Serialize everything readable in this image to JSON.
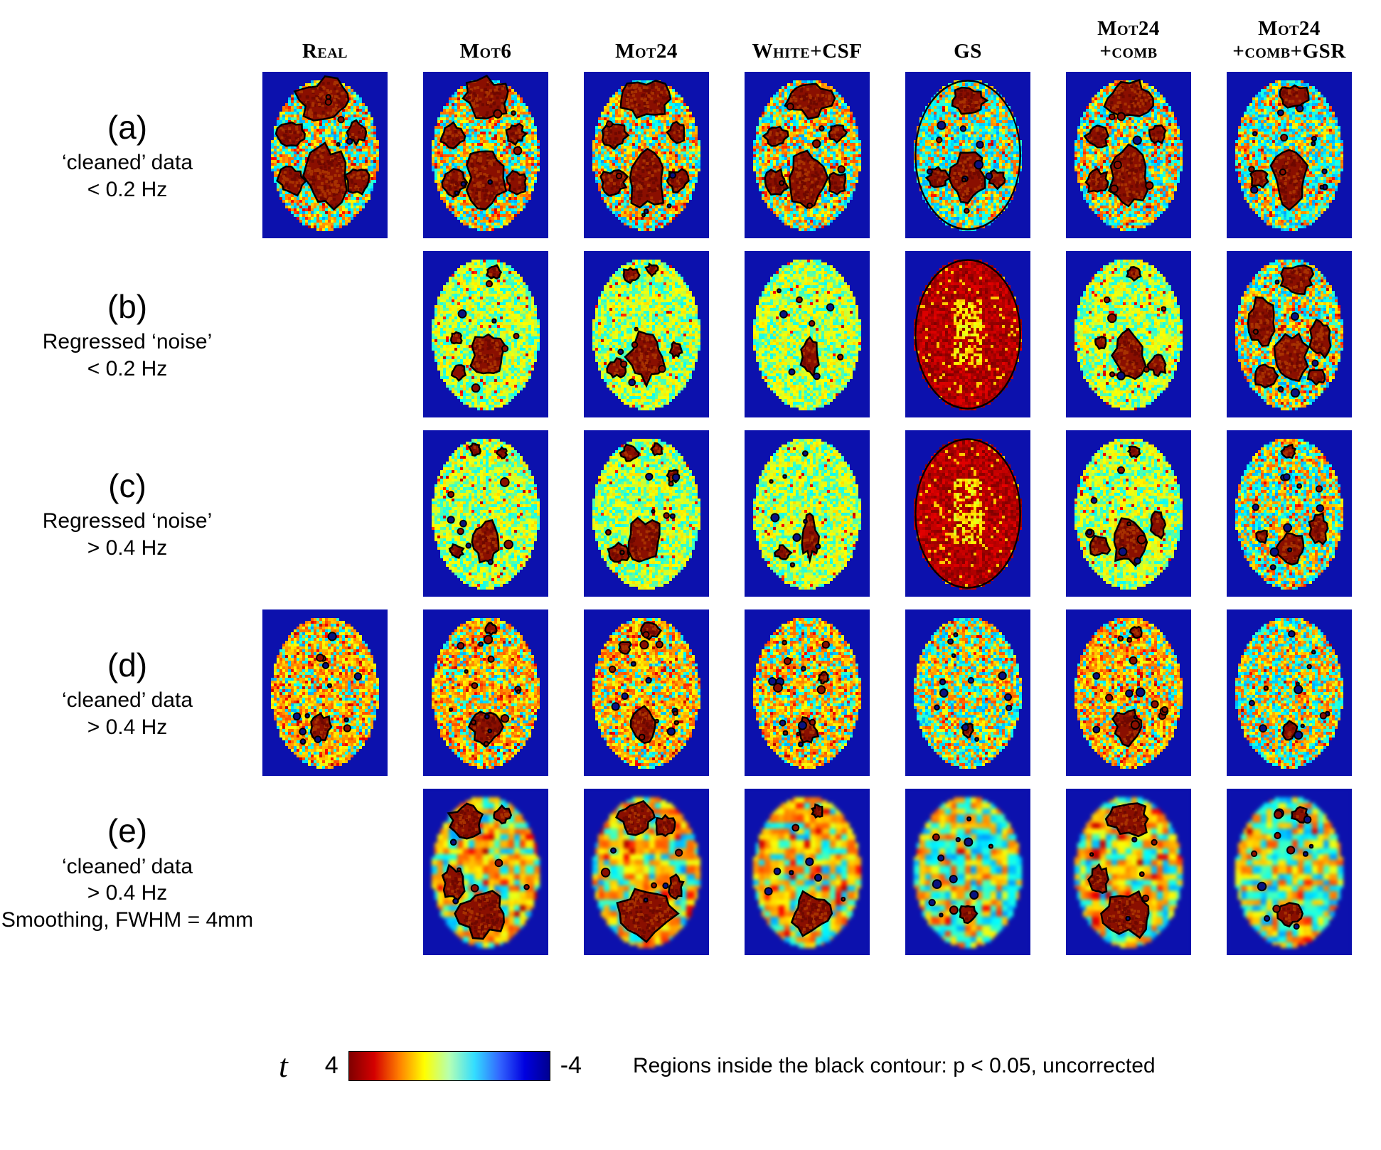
{
  "columns": [
    {
      "lines": [
        "Real"
      ]
    },
    {
      "lines": [
        "Mot6"
      ]
    },
    {
      "lines": [
        "Mot24"
      ]
    },
    {
      "lines": [
        "White+CSF"
      ]
    },
    {
      "lines": [
        "GS"
      ]
    },
    {
      "lines": [
        "Mot24",
        "+comb"
      ]
    },
    {
      "lines": [
        "Mot24",
        "+comb+GSR"
      ]
    }
  ],
  "rows": [
    {
      "tag": "(a)",
      "label_lines": [
        "‘cleaned’ data",
        "< 0.2 Hz"
      ],
      "cells": [
        {
          "seed": 101,
          "warm": 0.6,
          "hot": 0.15,
          "blobs": [
            [
              0,
              -0.72,
              0.5,
              0.26
            ],
            [
              -0.62,
              -0.28,
              0.24,
              0.16
            ],
            [
              0.58,
              -0.3,
              0.18,
              0.13
            ],
            [
              0,
              0.28,
              0.36,
              0.4
            ],
            [
              -0.62,
              0.34,
              0.24,
              0.18
            ],
            [
              0.6,
              0.34,
              0.2,
              0.16
            ]
          ],
          "dots": 5
        },
        {
          "seed": 102,
          "warm": 0.6,
          "hot": 0.13,
          "blobs": [
            [
              0.02,
              -0.75,
              0.44,
              0.24
            ],
            [
              -0.6,
              -0.25,
              0.22,
              0.15
            ],
            [
              0.55,
              -0.28,
              0.17,
              0.12
            ],
            [
              0,
              0.3,
              0.34,
              0.38
            ],
            [
              -0.6,
              0.36,
              0.22,
              0.16
            ],
            [
              0.58,
              0.36,
              0.18,
              0.14
            ]
          ],
          "dots": 6
        },
        {
          "seed": 103,
          "warm": 0.6,
          "hot": 0.13,
          "blobs": [
            [
              0,
              -0.74,
              0.42,
              0.24
            ],
            [
              -0.6,
              -0.26,
              0.22,
              0.15
            ],
            [
              0.56,
              -0.3,
              0.16,
              0.12
            ],
            [
              0.02,
              0.3,
              0.34,
              0.38
            ],
            [
              -0.6,
              0.36,
              0.22,
              0.16
            ],
            [
              0.58,
              0.34,
              0.18,
              0.14
            ]
          ],
          "dots": 6
        },
        {
          "seed": 104,
          "warm": 0.6,
          "hot": 0.12,
          "blobs": [
            [
              0.02,
              -0.75,
              0.4,
              0.22
            ],
            [
              -0.58,
              -0.25,
              0.2,
              0.14
            ],
            [
              0.55,
              -0.3,
              0.15,
              0.11
            ],
            [
              0,
              0.3,
              0.32,
              0.36
            ],
            [
              -0.58,
              0.36,
              0.2,
              0.15
            ],
            [
              0.56,
              0.36,
              0.17,
              0.13
            ]
          ],
          "dots": 6
        },
        {
          "seed": 105,
          "warm": 0.42,
          "hot": 0.05,
          "outline": 1,
          "blobs": [
            [
              0.02,
              -0.72,
              0.3,
              0.16
            ],
            [
              0,
              0.3,
              0.3,
              0.3
            ],
            [
              -0.55,
              0.3,
              0.18,
              0.13
            ],
            [
              0.55,
              0.32,
              0.14,
              0.11
            ]
          ],
          "dots": 10
        },
        {
          "seed": 106,
          "warm": 0.58,
          "hot": 0.12,
          "blobs": [
            [
              0.02,
              -0.75,
              0.42,
              0.23
            ],
            [
              -0.58,
              -0.25,
              0.2,
              0.14
            ],
            [
              0.55,
              -0.28,
              0.15,
              0.11
            ],
            [
              0,
              0.3,
              0.32,
              0.36
            ],
            [
              -0.58,
              0.36,
              0.2,
              0.15
            ]
          ],
          "dots": 6
        },
        {
          "seed": 107,
          "warm": 0.46,
          "hot": 0.08,
          "blobs": [
            [
              0.1,
              -0.78,
              0.28,
              0.14
            ],
            [
              0,
              0.3,
              0.3,
              0.34
            ],
            [
              -0.56,
              0.3,
              0.16,
              0.12
            ]
          ],
          "dots": 12
        }
      ]
    },
    {
      "tag": "(b)",
      "label_lines": [
        "Regressed ‘noise’",
        "< 0.2 Hz"
      ],
      "cells": [
        null,
        {
          "seed": 201,
          "pale": 1,
          "warm": 0.6,
          "hot": 0.05,
          "blobs": [
            [
              0.05,
              0.28,
              0.3,
              0.3
            ],
            [
              0.15,
              -0.82,
              0.12,
              0.08
            ],
            [
              -0.55,
              0.05,
              0.1,
              0.08
            ],
            [
              -0.5,
              0.5,
              0.12,
              0.09
            ]
          ],
          "dots": 6
        },
        {
          "seed": 202,
          "pale": 1,
          "warm": 0.6,
          "hot": 0.05,
          "blobs": [
            [
              0,
              0.3,
              0.32,
              0.32
            ],
            [
              -0.3,
              -0.78,
              0.14,
              0.09
            ],
            [
              0.1,
              -0.85,
              0.1,
              0.07
            ],
            [
              -0.55,
              0.45,
              0.16,
              0.11
            ],
            [
              0.55,
              0.2,
              0.1,
              0.09
            ]
          ],
          "dots": 6
        },
        {
          "seed": 203,
          "pale": 1,
          "warm": 0.62,
          "hot": 0.04,
          "blobs": [
            [
              0.05,
              0.3,
              0.16,
              0.24
            ]
          ],
          "dots": 8
        },
        {
          "seed": 204,
          "base": "red"
        },
        {
          "seed": 205,
          "pale": 1,
          "warm": 0.62,
          "hot": 0.06,
          "blobs": [
            [
              0,
              0.28,
              0.3,
              0.32
            ],
            [
              0.55,
              0.4,
              0.16,
              0.13
            ],
            [
              0.1,
              -0.8,
              0.12,
              0.08
            ],
            [
              -0.5,
              0.1,
              0.1,
              0.08
            ]
          ],
          "dots": 6
        },
        {
          "seed": 206,
          "warm": 0.55,
          "hot": 0.1,
          "blobs": [
            [
              0.15,
              -0.72,
              0.3,
              0.18
            ],
            [
              -0.5,
              -0.15,
              0.26,
              0.3
            ],
            [
              0.05,
              0.3,
              0.3,
              0.3
            ],
            [
              0.58,
              0.05,
              0.18,
              0.24
            ],
            [
              -0.45,
              0.55,
              0.2,
              0.13
            ],
            [
              0.5,
              0.55,
              0.15,
              0.1
            ]
          ],
          "dots": 6
        }
      ]
    },
    {
      "tag": "(c)",
      "label_lines": [
        "Regressed ‘noise’",
        "> 0.4 Hz"
      ],
      "cells": [
        null,
        {
          "seed": 301,
          "pale": 1,
          "warm": 0.6,
          "hot": 0.05,
          "blobs": [
            [
              0,
              0.38,
              0.26,
              0.26
            ],
            [
              -0.2,
              -0.85,
              0.1,
              0.07
            ],
            [
              0.3,
              -0.8,
              0.09,
              0.06
            ],
            [
              -0.55,
              0.5,
              0.12,
              0.08
            ]
          ],
          "dots": 8
        },
        {
          "seed": 302,
          "pale": 1,
          "warm": 0.6,
          "hot": 0.05,
          "blobs": [
            [
              -0.02,
              0.38,
              0.3,
              0.28
            ],
            [
              -0.3,
              -0.8,
              0.16,
              0.1
            ],
            [
              0.2,
              -0.85,
              0.1,
              0.07
            ],
            [
              -0.52,
              0.52,
              0.18,
              0.11
            ],
            [
              0.5,
              -0.5,
              0.1,
              0.08
            ]
          ],
          "dots": 8
        },
        {
          "seed": 303,
          "pale": 1,
          "warm": 0.62,
          "hot": 0.04,
          "blobs": [
            [
              0.05,
              0.3,
              0.14,
              0.26
            ],
            [
              -0.45,
              0.52,
              0.13,
              0.09
            ]
          ],
          "dots": 8
        },
        {
          "seed": 304,
          "base": "red"
        },
        {
          "seed": 305,
          "pale": 1,
          "warm": 0.62,
          "hot": 0.06,
          "blobs": [
            [
              0,
              0.38,
              0.28,
              0.28
            ],
            [
              -0.55,
              0.42,
              0.18,
              0.13
            ],
            [
              0.55,
              0.15,
              0.13,
              0.17
            ],
            [
              0.1,
              -0.82,
              0.1,
              0.07
            ]
          ],
          "dots": 8
        },
        {
          "seed": 306,
          "warm": 0.55,
          "hot": 0.07,
          "blobs": [
            [
              0.05,
              0.45,
              0.24,
              0.2
            ],
            [
              0.55,
              0.2,
              0.16,
              0.18
            ],
            [
              0,
              -0.82,
              0.12,
              0.08
            ],
            [
              -0.5,
              0.3,
              0.1,
              0.08
            ]
          ],
          "dots": 10
        }
      ]
    },
    {
      "tag": "(d)",
      "label_lines": [
        "‘cleaned’ data",
        "> 0.4 Hz"
      ],
      "cells": [
        {
          "seed": 401,
          "warm": 0.78,
          "hot": 0.1,
          "blobs": [
            [
              -0.08,
              0.45,
              0.18,
              0.16
            ]
          ],
          "dots": 14
        },
        {
          "seed": 402,
          "warm": 0.78,
          "hot": 0.1,
          "blobs": [
            [
              0,
              0.45,
              0.26,
              0.22
            ],
            [
              0.1,
              -0.85,
              0.1,
              0.07
            ]
          ],
          "dots": 14
        },
        {
          "seed": 403,
          "warm": 0.78,
          "hot": 0.1,
          "blobs": [
            [
              -0.04,
              0.45,
              0.26,
              0.22
            ],
            [
              0.05,
              -0.82,
              0.18,
              0.1
            ],
            [
              -0.4,
              -0.6,
              0.1,
              0.08
            ]
          ],
          "dots": 14
        },
        {
          "seed": 404,
          "warm": 0.75,
          "hot": 0.08,
          "blobs": [
            [
              0,
              0.5,
              0.18,
              0.16
            ],
            [
              0.3,
              -0.2,
              0.08,
              0.07
            ]
          ],
          "dots": 14
        },
        {
          "seed": 405,
          "warm": 0.55,
          "hot": 0.05,
          "blobs": [
            [
              0,
              0.5,
              0.1,
              0.09
            ]
          ],
          "dots": 12
        },
        {
          "seed": 406,
          "warm": 0.78,
          "hot": 0.1,
          "blobs": [
            [
              0,
              0.45,
              0.26,
              0.22
            ],
            [
              0.15,
              -0.8,
              0.1,
              0.07
            ]
          ],
          "dots": 14
        },
        {
          "seed": 407,
          "warm": 0.55,
          "hot": 0.06,
          "blobs": [
            [
              0,
              0.5,
              0.13,
              0.11
            ]
          ],
          "dots": 12
        }
      ]
    },
    {
      "tag": "(e)",
      "label_lines": [
        "‘cleaned’ data",
        "> 0.4 Hz",
        "Smoothing, FWHM = 4mm"
      ],
      "cells": [
        null,
        {
          "seed": 501,
          "smooth": 1,
          "warm": 0.72,
          "hot": 0.1,
          "blobs": [
            [
              -0.35,
              -0.68,
              0.3,
              0.2
            ],
            [
              0.3,
              -0.75,
              0.15,
              0.1
            ],
            [
              -0.05,
              0.55,
              0.42,
              0.3
            ],
            [
              -0.6,
              0.15,
              0.18,
              0.22
            ]
          ],
          "dots": 6
        },
        {
          "seed": 502,
          "smooth": 1,
          "warm": 0.72,
          "hot": 0.1,
          "blobs": [
            [
              -0.2,
              -0.72,
              0.32,
              0.2
            ],
            [
              0.35,
              -0.6,
              0.18,
              0.13
            ],
            [
              0,
              0.55,
              0.48,
              0.3
            ],
            [
              0.55,
              0.2,
              0.12,
              0.14
            ]
          ],
          "dots": 6
        },
        {
          "seed": 503,
          "smooth": 1,
          "warm": 0.7,
          "hot": 0.07,
          "blobs": [
            [
              0.08,
              0.55,
              0.34,
              0.26
            ],
            [
              0.2,
              -0.8,
              0.1,
              0.08
            ]
          ],
          "dots": 8
        },
        {
          "seed": 504,
          "smooth": 1,
          "warm": 0.5,
          "hot": 0.04,
          "blobs": [
            [
              0,
              0.55,
              0.14,
              0.11
            ]
          ],
          "dots": 12
        },
        {
          "seed": 505,
          "smooth": 1,
          "warm": 0.72,
          "hot": 0.1,
          "blobs": [
            [
              0,
              -0.7,
              0.38,
              0.2
            ],
            [
              0,
              0.55,
              0.44,
              0.28
            ],
            [
              -0.55,
              0.1,
              0.16,
              0.18
            ]
          ],
          "dots": 6
        },
        {
          "seed": 506,
          "smooth": 1,
          "warm": 0.52,
          "hot": 0.05,
          "blobs": [
            [
              0.2,
              -0.75,
              0.14,
              0.09
            ],
            [
              0,
              0.55,
              0.2,
              0.14
            ]
          ],
          "dots": 12
        }
      ]
    }
  ],
  "colorbar": {
    "symbol": "t",
    "max_label": "4",
    "min_label": "-4",
    "gradient": [
      "#7f0000",
      "#d40000",
      "#ff7f00",
      "#ffff00",
      "#b4ffb4",
      "#33ddff",
      "#3366ff",
      "#0000e0",
      "#00008f"
    ]
  },
  "note": "Regions inside the black contour: p < 0.05, uncorrected",
  "colors": {
    "background_blue": "#0c11ad",
    "blob_red": "#8a0f00",
    "blob_red_dark": "#6e0800",
    "blob_red_light": "#a83200",
    "negative_navy": "#0a1280",
    "contour_black": "#000000"
  }
}
